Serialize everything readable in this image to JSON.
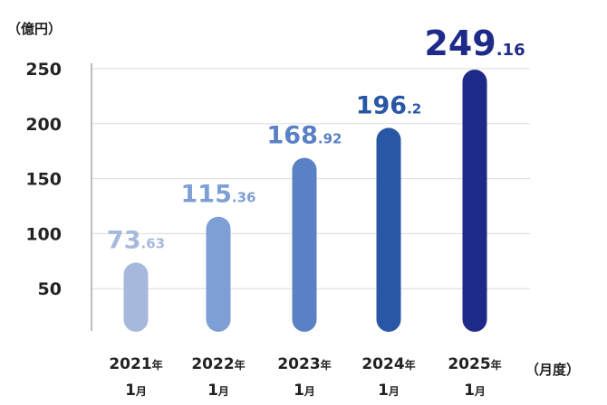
{
  "chart_data": {
    "type": "bar",
    "y_unit": "（億円）",
    "x_unit": "（月度）",
    "categories": [
      {
        "year": "2021",
        "year_suffix": "年",
        "month": "1",
        "month_suffix": "月"
      },
      {
        "year": "2022",
        "year_suffix": "年",
        "month": "1",
        "month_suffix": "月"
      },
      {
        "year": "2023",
        "year_suffix": "年",
        "month": "1",
        "month_suffix": "月"
      },
      {
        "year": "2024",
        "year_suffix": "年",
        "month": "1",
        "month_suffix": "月"
      },
      {
        "year": "2025",
        "year_suffix": "年",
        "month": "1",
        "month_suffix": "月"
      }
    ],
    "values": [
      73.63,
      115.36,
      168.92,
      196.2,
      249.16
    ],
    "value_labels": [
      {
        "int": "73",
        "dec": ".63"
      },
      {
        "int": "115",
        "dec": ".36"
      },
      {
        "int": "168",
        "dec": ".92"
      },
      {
        "int": "196",
        "dec": ".2"
      },
      {
        "int": "249",
        "dec": ".16"
      }
    ],
    "bar_colors": [
      "#a6b9dd",
      "#7e9fd6",
      "#5a80c6",
      "#2957a6",
      "#1e2a88"
    ],
    "label_colors": [
      "#a6b9dd",
      "#7e9fd6",
      "#5a80c6",
      "#2957a6",
      "#1e2a88"
    ],
    "yticks": [
      "50",
      "100",
      "150",
      "200",
      "250"
    ],
    "ylim": [
      0,
      250
    ],
    "grid": true,
    "legend": "none"
  }
}
